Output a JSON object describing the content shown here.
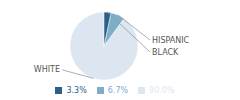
{
  "chart_data": {
    "type": "pie",
    "categories": [
      "WHITE",
      "HISPANIC",
      "BLACK"
    ],
    "values": [
      90.0,
      6.7,
      3.3
    ],
    "value_labels": [
      "90.0%",
      "6.7%",
      "3.3%"
    ],
    "colors": [
      "#dce6f0",
      "#7caec8",
      "#2d5f8a"
    ],
    "legend": "bottom"
  }
}
